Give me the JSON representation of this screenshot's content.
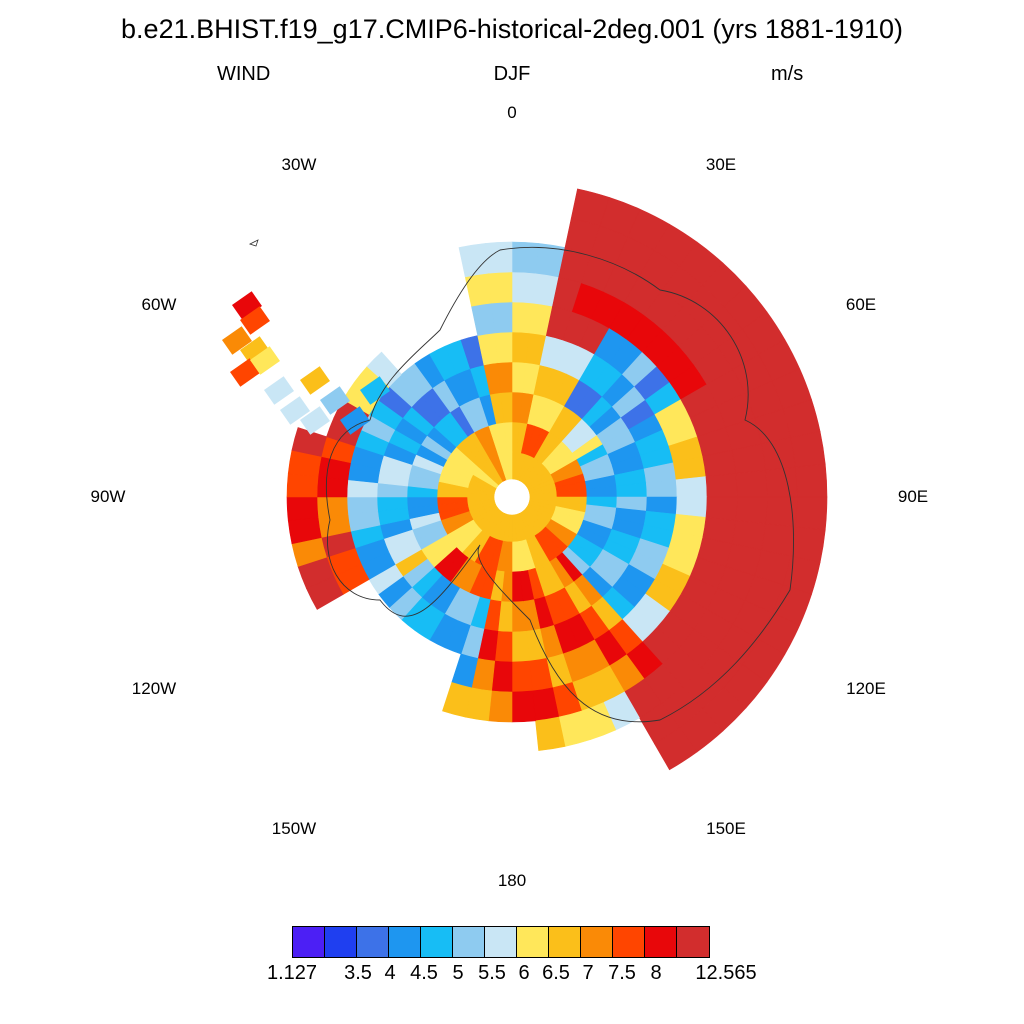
{
  "title": "b.e21.BHIST.f19_g17.CMIP6-historical-2deg.001 (yrs 1881-1910)",
  "subtitle": {
    "left": "WIND",
    "center": "DJF",
    "right": "m/s"
  },
  "longitude_labels": [
    "0",
    "30E",
    "60E",
    "90E",
    "120E",
    "150E",
    "180",
    "150W",
    "120W",
    "90W",
    "60W",
    "30W"
  ],
  "colorbar": {
    "colors": [
      "#4c1ff5",
      "#1f3ff0",
      "#3d72e8",
      "#1e96f0",
      "#17bdf5",
      "#8ecbf0",
      "#c9e6f5",
      "#ffe75a",
      "#fbbf1a",
      "#fa8a06",
      "#ff4500",
      "#e8070a",
      "#d22d2d"
    ],
    "labels": [
      "1.127",
      "3.5",
      "4",
      "4.5",
      "5",
      "5.5",
      "6",
      "6.5",
      "7",
      "7.5",
      "8",
      "12.565"
    ]
  },
  "chart_data": {
    "type": "heatmap",
    "title": "b.e21.BHIST.f19_g17.CMIP6-historical-2deg.001 (yrs 1881-1910)",
    "variable": "WIND",
    "season": "DJF",
    "units": "m/s",
    "projection": "south polar stereographic",
    "contour_levels": [
      1.127,
      3.5,
      4,
      4.5,
      5,
      5.5,
      6,
      6.5,
      7,
      7.5,
      8,
      12.565
    ],
    "note_regions": [
      {
        "sector": "0 to 30E",
        "band": "coast",
        "value": 12.0
      },
      {
        "sector": "30E to 90E",
        "band": "outer",
        "value": 12.0
      },
      {
        "sector": "90E to 150E",
        "band": "outer",
        "value": 12.0
      },
      {
        "sector": "90E to 120E",
        "band": "interior",
        "value": 4.2
      },
      {
        "sector": "30W to 0",
        "band": "interior",
        "value": 6.8
      },
      {
        "sector": "90W",
        "band": "middle",
        "value": 5.2
      },
      {
        "sector": "150W to 180",
        "band": "middle",
        "value": 4.5
      },
      {
        "sector": "180 to 150E",
        "band": "middle",
        "value": 7.9
      },
      {
        "sector": "60W",
        "band": "peninsula",
        "value": 7.3
      }
    ]
  }
}
